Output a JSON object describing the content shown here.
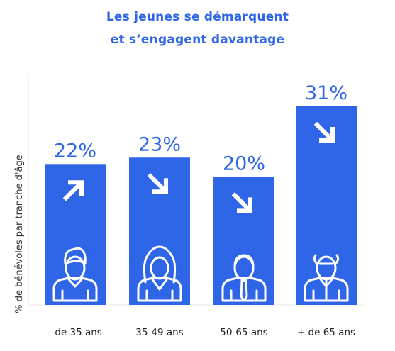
{
  "chart_data": {
    "type": "bar",
    "title": "Les jeunes se démarquent",
    "subtitle": "et s’engagent davantage",
    "xlabel": "",
    "ylabel": "% de bénévoles par tranche d'âge",
    "categories": [
      "- de 35 ans",
      "35-49 ans",
      "50-65 ans",
      "+ de 65 ans"
    ],
    "values": [
      22,
      23,
      20,
      31
    ],
    "value_labels": [
      "22%",
      "23%",
      "20%",
      "31%"
    ],
    "trend_arrows": [
      "up",
      "down",
      "down",
      "down"
    ],
    "person_icons": [
      "young-man-icon",
      "woman-icon",
      "man-icon",
      "elderly-man-icon"
    ],
    "ylim": [
      0,
      33
    ],
    "grid": false,
    "legend": "none",
    "colors": {
      "bar": "#2f66e8",
      "title": "#2f66e8",
      "value_label": "#2f66e8",
      "icon": "#ffffff"
    }
  }
}
